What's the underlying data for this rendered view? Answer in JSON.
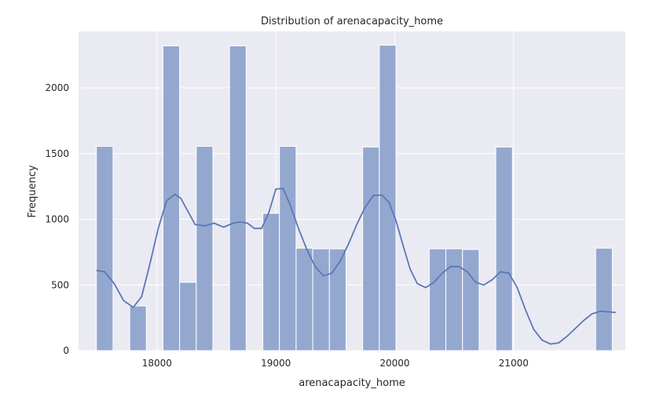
{
  "chart_data": {
    "type": "bar",
    "title": "Distribution of arenacapacity_home",
    "xlabel": "arenacapacity_home",
    "ylabel": "Frequency",
    "xlim": [
      17340,
      21940
    ],
    "ylim": [
      0,
      2430
    ],
    "x_ticks": [
      18000,
      19000,
      20000,
      21000
    ],
    "y_ticks": [
      0,
      500,
      1000,
      1500,
      2000
    ],
    "grid": true,
    "bins": [
      {
        "x0": 17490,
        "x1": 17630,
        "count": 1555
      },
      {
        "x0": 17630,
        "x1": 17770,
        "count": 0
      },
      {
        "x0": 17770,
        "x1": 17910,
        "count": 340
      },
      {
        "x0": 17910,
        "x1": 18050,
        "count": 0
      },
      {
        "x0": 18050,
        "x1": 18190,
        "count": 2320
      },
      {
        "x0": 18190,
        "x1": 18330,
        "count": 520
      },
      {
        "x0": 18330,
        "x1": 18470,
        "count": 1555
      },
      {
        "x0": 18470,
        "x1": 18610,
        "count": 0
      },
      {
        "x0": 18610,
        "x1": 18750,
        "count": 2320
      },
      {
        "x0": 18750,
        "x1": 18890,
        "count": 0
      },
      {
        "x0": 18890,
        "x1": 19030,
        "count": 1045
      },
      {
        "x0": 19030,
        "x1": 19170,
        "count": 1555
      },
      {
        "x0": 19170,
        "x1": 19310,
        "count": 780
      },
      {
        "x0": 19310,
        "x1": 19450,
        "count": 775
      },
      {
        "x0": 19450,
        "x1": 19590,
        "count": 775
      },
      {
        "x0": 19590,
        "x1": 19730,
        "count": 0
      },
      {
        "x0": 19730,
        "x1": 19870,
        "count": 1550
      },
      {
        "x0": 19870,
        "x1": 20010,
        "count": 2325
      },
      {
        "x0": 20010,
        "x1": 20150,
        "count": 0
      },
      {
        "x0": 20150,
        "x1": 20290,
        "count": 0
      },
      {
        "x0": 20290,
        "x1": 20430,
        "count": 775
      },
      {
        "x0": 20430,
        "x1": 20570,
        "count": 775
      },
      {
        "x0": 20570,
        "x1": 20710,
        "count": 770
      },
      {
        "x0": 20710,
        "x1": 20850,
        "count": 0
      },
      {
        "x0": 20850,
        "x1": 20990,
        "count": 1550
      },
      {
        "x0": 20990,
        "x1": 21130,
        "count": 0
      },
      {
        "x0": 21130,
        "x1": 21270,
        "count": 0
      },
      {
        "x0": 21270,
        "x1": 21410,
        "count": 0
      },
      {
        "x0": 21410,
        "x1": 21550,
        "count": 0
      },
      {
        "x0": 21550,
        "x1": 21690,
        "count": 0
      },
      {
        "x0": 21690,
        "x1": 21830,
        "count": 780
      }
    ],
    "kde": {
      "x": [
        17490,
        17560,
        17640,
        17720,
        17800,
        17870,
        17940,
        18010,
        18080,
        18150,
        18200,
        18260,
        18320,
        18400,
        18480,
        18560,
        18640,
        18700,
        18760,
        18820,
        18880,
        18940,
        19000,
        19060,
        19120,
        19190,
        19260,
        19330,
        19400,
        19470,
        19540,
        19610,
        19680,
        19750,
        19820,
        19890,
        19950,
        20010,
        20070,
        20130,
        20190,
        20260,
        20330,
        20400,
        20470,
        20540,
        20610,
        20680,
        20750,
        20820,
        20890,
        20960,
        21030,
        21100,
        21170,
        21240,
        21310,
        21380,
        21450,
        21520,
        21590,
        21660,
        21730,
        21800,
        21860
      ],
      "y": [
        610,
        600,
        510,
        380,
        330,
        410,
        660,
        930,
        1140,
        1190,
        1160,
        1060,
        960,
        950,
        970,
        940,
        970,
        980,
        970,
        930,
        930,
        1050,
        1230,
        1235,
        1110,
        930,
        770,
        640,
        570,
        590,
        680,
        810,
        960,
        1090,
        1180,
        1185,
        1130,
        990,
        800,
        620,
        510,
        480,
        520,
        590,
        640,
        640,
        600,
        520,
        500,
        540,
        600,
        590,
        480,
        310,
        160,
        80,
        50,
        60,
        110,
        170,
        230,
        280,
        300,
        295,
        290
      ]
    },
    "colors": {
      "bar_fill": "#8fa4cc",
      "bar_edge": "#ffffff",
      "kde_line": "#5a78b6",
      "plot_bg": "#eaeaf2",
      "grid": "#ffffff"
    }
  }
}
